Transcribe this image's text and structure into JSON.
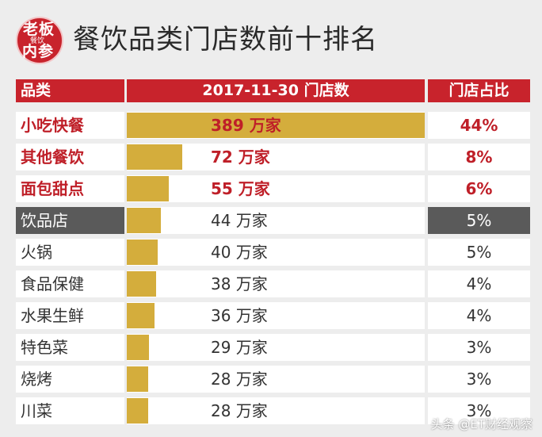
{
  "header": {
    "logo": {
      "line1": "老板",
      "line2": "餐饮",
      "line3": "内参"
    },
    "title": "餐饮品类门店数前十排名"
  },
  "chart_data": {
    "type": "table",
    "title": "餐饮品类门店数前十排名",
    "columns": [
      "品类",
      "2017-11-30 门店数",
      "门店占比"
    ],
    "unit": "万家",
    "rows": [
      {
        "category": "小吃快餐",
        "stores": 389,
        "stores_label": "389 万家",
        "share": "44%",
        "highlight": true
      },
      {
        "category": "其他餐饮",
        "stores": 72,
        "stores_label": "72 万家",
        "share": "8%",
        "highlight": true
      },
      {
        "category": "面包甜点",
        "stores": 55,
        "stores_label": "55 万家",
        "share": "6%",
        "highlight": true
      },
      {
        "category": "饮品店",
        "stores": 44,
        "stores_label": "44 万家",
        "share": "5%",
        "dark": true
      },
      {
        "category": "火锅",
        "stores": 40,
        "stores_label": "40 万家",
        "share": "5%"
      },
      {
        "category": "食品保健",
        "stores": 38,
        "stores_label": "38 万家",
        "share": "4%"
      },
      {
        "category": "水果生鲜",
        "stores": 36,
        "stores_label": "36 万家",
        "share": "4%"
      },
      {
        "category": "特色菜",
        "stores": 29,
        "stores_label": "29 万家",
        "share": "3%"
      },
      {
        "category": "烧烤",
        "stores": 28,
        "stores_label": "28 万家",
        "share": "3%"
      },
      {
        "category": "川菜",
        "stores": 28,
        "stores_label": "28 万家",
        "share": "3%"
      }
    ],
    "max_value": 389,
    "colors": {
      "bar": "#d4ad3c",
      "header": "#c8232c",
      "highlight_text": "#bf1f28",
      "dark_row": "#5a5a5a"
    }
  },
  "watermark": "头条 @ET财经观察"
}
